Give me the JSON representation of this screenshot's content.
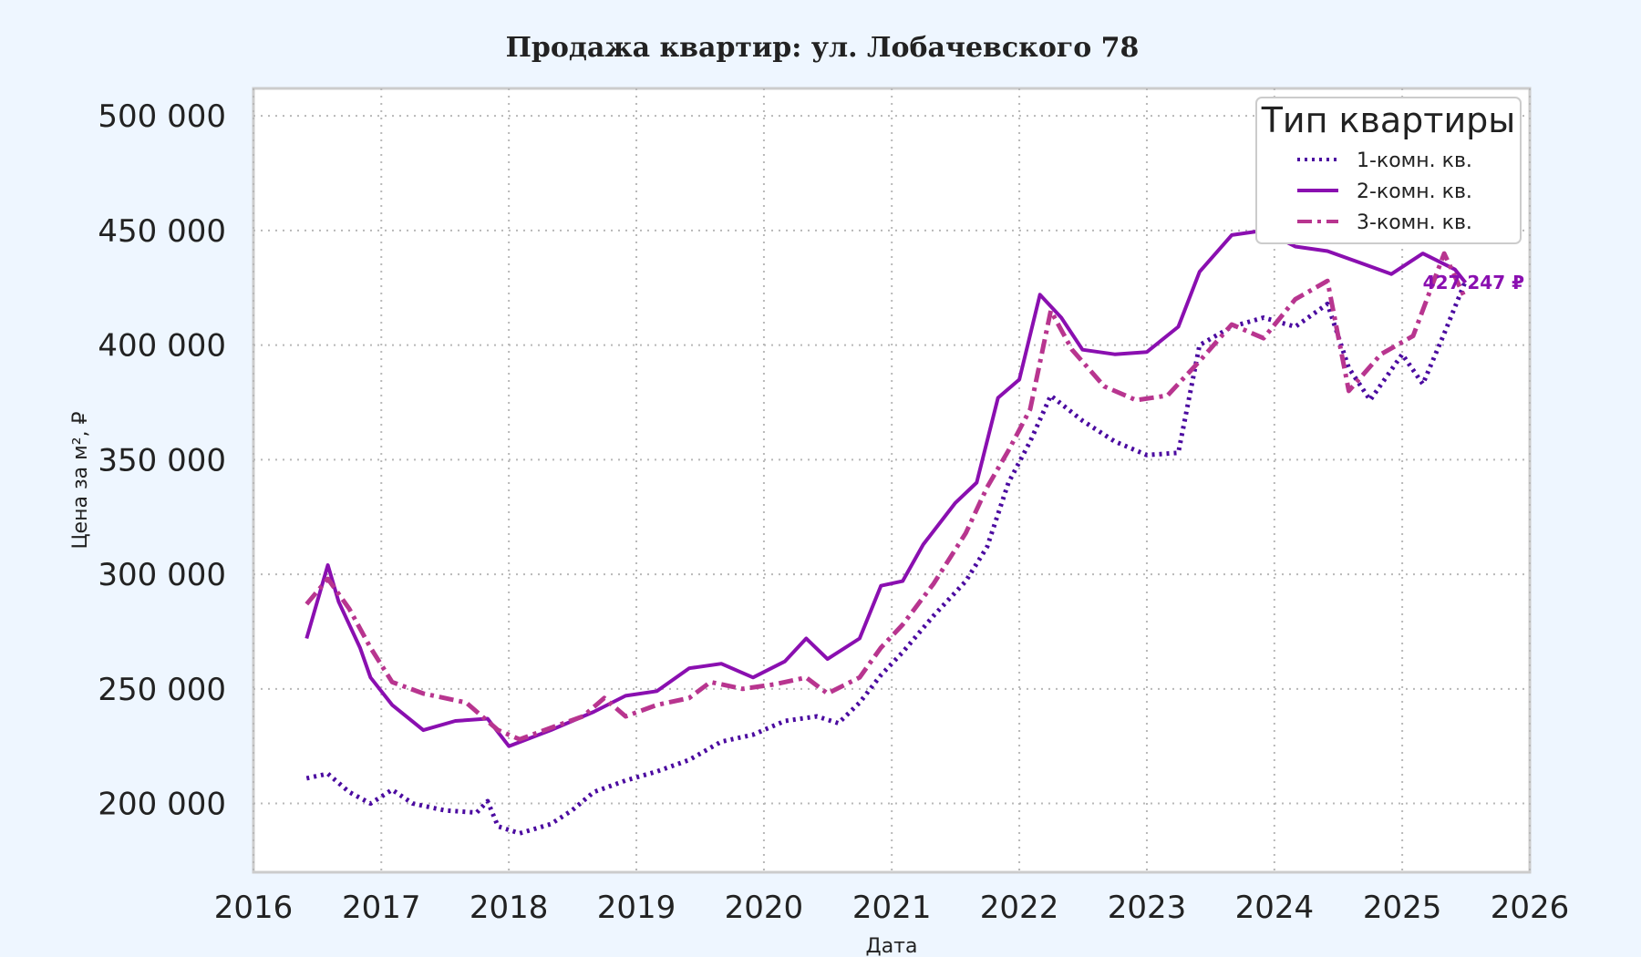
{
  "colors": {
    "page_background": "#eef6ff",
    "plot_background": "#ffffff",
    "frame": "#cccccc",
    "grid": "#b8b8b8",
    "series_1": "#4b0aa0",
    "series_2": "#8a0fb0",
    "series_3": "#b8358f",
    "annotation_other": "#f08a3c"
  },
  "chart_data": {
    "type": "line",
    "title": "Продажа квартир: ул. Лобачевского 78",
    "xlabel": "Дата",
    "ylabel": "Цена за м², ₽",
    "xlim": [
      "2016-01-01",
      "2026-01-01"
    ],
    "ylim": [
      170000,
      512000
    ],
    "x_ticks": [
      "2016",
      "2017",
      "2018",
      "2019",
      "2020",
      "2021",
      "2022",
      "2023",
      "2024",
      "2025",
      "2026"
    ],
    "y_ticks": [
      {
        "value": 200000,
        "label": "200 000"
      },
      {
        "value": 250000,
        "label": "250 000"
      },
      {
        "value": 300000,
        "label": "300 000"
      },
      {
        "value": 350000,
        "label": "350 000"
      },
      {
        "value": 400000,
        "label": "400 000"
      },
      {
        "value": 450000,
        "label": "450 000"
      },
      {
        "value": 500000,
        "label": "500 000"
      }
    ],
    "grid": true,
    "legend": {
      "title": "Тип квартиры",
      "placement": "top-right"
    },
    "series": [
      {
        "name": "1-комн. кв.",
        "style": "dotted",
        "color": "#4b0aa0",
        "points": [
          [
            "2016-06-01",
            211000
          ],
          [
            "2016-08-01",
            213000
          ],
          [
            "2016-10-01",
            205000
          ],
          [
            "2016-12-01",
            200000
          ],
          [
            "2017-02-01",
            206000
          ],
          [
            "2017-04-01",
            200000
          ],
          [
            "2017-07-01",
            197000
          ],
          [
            "2017-10-01",
            196000
          ],
          [
            "2017-11-01",
            201000
          ],
          [
            "2017-12-01",
            190000
          ],
          [
            "2018-02-01",
            187000
          ],
          [
            "2018-05-01",
            191000
          ],
          [
            "2018-07-01",
            197000
          ],
          [
            "2018-09-01",
            205000
          ],
          [
            "2018-12-01",
            210000
          ],
          [
            "2019-03-01",
            214000
          ],
          [
            "2019-06-01",
            219000
          ],
          [
            "2019-09-01",
            227000
          ],
          [
            "2019-12-01",
            230000
          ],
          [
            "2020-03-01",
            236000
          ],
          [
            "2020-06-01",
            238000
          ],
          [
            "2020-08-01",
            235000
          ],
          [
            "2020-10-01",
            244000
          ],
          [
            "2020-12-01",
            256000
          ],
          [
            "2021-02-01",
            266000
          ],
          [
            "2021-05-01",
            282000
          ],
          [
            "2021-08-01",
            297000
          ],
          [
            "2021-10-01",
            312000
          ],
          [
            "2021-12-01",
            340000
          ],
          [
            "2022-02-01",
            358000
          ],
          [
            "2022-04-01",
            378000
          ],
          [
            "2022-07-01",
            367000
          ],
          [
            "2022-10-01",
            358000
          ],
          [
            "2023-01-01",
            352000
          ],
          [
            "2023-04-01",
            353000
          ],
          [
            "2023-06-01",
            400000
          ],
          [
            "2023-09-01",
            408000
          ],
          [
            "2023-12-01",
            412000
          ],
          [
            "2024-03-01",
            408000
          ],
          [
            "2024-06-01",
            418000
          ],
          [
            "2024-08-01",
            390000
          ],
          [
            "2024-10-01",
            376000
          ],
          [
            "2025-01-01",
            396000
          ],
          [
            "2025-03-01",
            383000
          ],
          [
            "2025-05-01",
            405000
          ],
          [
            "2025-07-01",
            428000
          ]
        ]
      },
      {
        "name": "2-комн. кв.",
        "style": "solid",
        "color": "#8a0fb0",
        "points": [
          [
            "2016-06-01",
            272000
          ],
          [
            "2016-08-01",
            304000
          ],
          [
            "2016-09-01",
            288000
          ],
          [
            "2016-11-01",
            268000
          ],
          [
            "2016-12-01",
            255000
          ],
          [
            "2017-02-01",
            243000
          ],
          [
            "2017-05-01",
            232000
          ],
          [
            "2017-08-01",
            236000
          ],
          [
            "2017-11-01",
            237000
          ],
          [
            "2018-01-01",
            225000
          ],
          [
            "2018-05-01",
            232000
          ],
          [
            "2018-09-01",
            240000
          ],
          [
            "2018-12-01",
            247000
          ],
          [
            "2019-03-01",
            249000
          ],
          [
            "2019-06-01",
            259000
          ],
          [
            "2019-09-01",
            261000
          ],
          [
            "2019-12-01",
            255000
          ],
          [
            "2020-03-01",
            262000
          ],
          [
            "2020-05-01",
            272000
          ],
          [
            "2020-07-01",
            263000
          ],
          [
            "2020-10-01",
            272000
          ],
          [
            "2020-12-01",
            295000
          ],
          [
            "2021-02-01",
            297000
          ],
          [
            "2021-04-01",
            313000
          ],
          [
            "2021-07-01",
            331000
          ],
          [
            "2021-09-01",
            340000
          ],
          [
            "2021-11-01",
            377000
          ],
          [
            "2022-01-01",
            385000
          ],
          [
            "2022-03-01",
            422000
          ],
          [
            "2022-05-01",
            412000
          ],
          [
            "2022-07-01",
            398000
          ],
          [
            "2022-10-01",
            396000
          ],
          [
            "2023-01-01",
            397000
          ],
          [
            "2023-04-01",
            408000
          ],
          [
            "2023-06-01",
            432000
          ],
          [
            "2023-09-01",
            448000
          ],
          [
            "2023-12-01",
            450000
          ],
          [
            "2024-03-01",
            443000
          ],
          [
            "2024-06-01",
            441000
          ],
          [
            "2024-09-01",
            436000
          ],
          [
            "2024-12-01",
            431000
          ],
          [
            "2025-03-01",
            440000
          ],
          [
            "2025-06-01",
            433000
          ],
          [
            "2025-07-01",
            427247
          ]
        ]
      },
      {
        "name": "3-комн. кв.",
        "style": "dash-dot",
        "color": "#b8358f",
        "points": [
          [
            "2016-06-01",
            287000
          ],
          [
            "2016-08-01",
            298000
          ],
          [
            "2016-10-01",
            285000
          ],
          [
            "2016-12-01",
            268000
          ],
          [
            "2017-02-01",
            253000
          ],
          [
            "2017-05-01",
            248000
          ],
          [
            "2017-09-01",
            244000
          ],
          [
            "2017-12-01",
            232000
          ],
          [
            "2018-02-01",
            228000
          ],
          [
            "2018-05-01",
            233000
          ],
          [
            "2018-08-01",
            238000
          ],
          [
            "2018-10-01",
            246000
          ],
          [
            "2018-12-01",
            238000
          ],
          [
            "2019-03-01",
            243000
          ],
          [
            "2019-06-01",
            246000
          ],
          [
            "2019-08-01",
            253000
          ],
          [
            "2019-11-01",
            250000
          ],
          [
            "2020-02-01",
            252000
          ],
          [
            "2020-05-01",
            255000
          ],
          [
            "2020-07-01",
            248000
          ],
          [
            "2020-10-01",
            255000
          ],
          [
            "2020-12-01",
            268000
          ],
          [
            "2021-02-01",
            278000
          ],
          [
            "2021-05-01",
            296000
          ],
          [
            "2021-08-01",
            318000
          ],
          [
            "2021-10-01",
            338000
          ],
          [
            "2021-12-01",
            354000
          ],
          [
            "2022-02-01",
            372000
          ],
          [
            "2022-04-01",
            415000
          ],
          [
            "2022-06-01",
            398000
          ],
          [
            "2022-09-01",
            382000
          ],
          [
            "2022-12-01",
            376000
          ],
          [
            "2023-03-01",
            378000
          ],
          [
            "2023-06-01",
            393000
          ],
          [
            "2023-09-01",
            409000
          ],
          [
            "2023-12-01",
            403000
          ],
          [
            "2024-03-01",
            420000
          ],
          [
            "2024-06-01",
            428000
          ],
          [
            "2024-08-01",
            380000
          ],
          [
            "2024-11-01",
            396000
          ],
          [
            "2025-02-01",
            404000
          ],
          [
            "2025-05-01",
            440000
          ],
          [
            "2025-07-01",
            420000
          ]
        ]
      }
    ],
    "annotations": [
      {
        "text": "427 247 ₽",
        "x": "2025-07-01",
        "y": 427247,
        "series": "2-комн. кв."
      }
    ]
  }
}
